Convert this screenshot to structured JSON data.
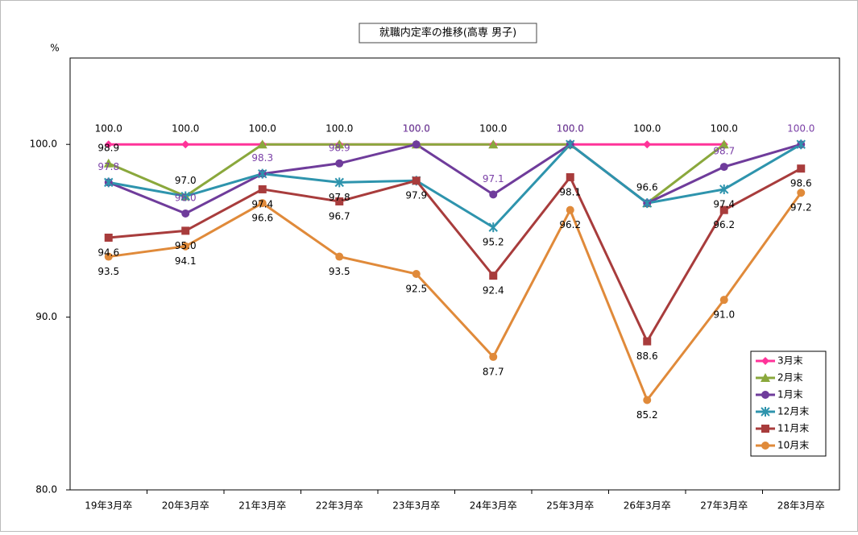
{
  "chart_data": {
    "type": "line",
    "title": "就職内定率の推移(高専 男子)",
    "y_label": "%",
    "categories": [
      "19年3月卒",
      "20年3月卒",
      "21年3月卒",
      "22年3月卒",
      "23年3月卒",
      "24年3月卒",
      "25年3月卒",
      "26年3月卒",
      "27年3月卒",
      "28年3月卒"
    ],
    "ylim": [
      80,
      105
    ],
    "yticks": [
      {
        "value": 80,
        "label": "80.0"
      },
      {
        "value": 90,
        "label": "90.0"
      },
      {
        "value": 100,
        "label": "100.0"
      }
    ],
    "legend": "bottom-right",
    "series": [
      {
        "name": "3月末",
        "color": "#ff3399",
        "marker": "diamond",
        "label_color": "#000000",
        "label_position": "above",
        "values": [
          100,
          100,
          100,
          100,
          100,
          100,
          100,
          100,
          100,
          null
        ],
        "value_labels": [
          "100.0",
          "100.0",
          "100.0",
          "100.0",
          "100.0",
          "100.0",
          "100.0",
          "100.0",
          "100.0",
          null
        ]
      },
      {
        "name": "2月末",
        "color": "#8aa83c",
        "marker": "triangle",
        "label_color": "#000000",
        "label_position": "above",
        "values": [
          98.9,
          97.0,
          100,
          100,
          100,
          100,
          100,
          96.6,
          100,
          null
        ],
        "value_labels": [
          "98.9",
          "97.0",
          null,
          null,
          null,
          null,
          null,
          "96.6",
          null,
          null
        ]
      },
      {
        "name": "1月末",
        "color": "#6f3c9b",
        "marker": "circle",
        "label_color": "#7a3fa6",
        "label_position": "above",
        "values": [
          97.8,
          96.0,
          98.3,
          98.9,
          100,
          97.1,
          100,
          96.6,
          98.7,
          100
        ],
        "value_labels": [
          "97.8",
          "96.0",
          "98.3",
          "98.9",
          "100.0",
          "97.1",
          "100.0",
          null,
          "98.7",
          "100.0"
        ]
      },
      {
        "name": "12月末",
        "color": "#2e94ad",
        "marker": "asterisk",
        "label_color": "#000000",
        "label_position": "below",
        "values": [
          97.8,
          97.0,
          98.3,
          97.8,
          97.9,
          95.2,
          100,
          96.6,
          97.4,
          100
        ],
        "value_labels": [
          null,
          null,
          null,
          "97.8",
          "97.9",
          "95.2",
          null,
          null,
          "97.4",
          null
        ]
      },
      {
        "name": "11月末",
        "color": "#a83c3c",
        "marker": "square",
        "label_color": "#000000",
        "label_position": "below",
        "values": [
          94.6,
          95.0,
          97.4,
          96.7,
          97.9,
          92.4,
          98.1,
          88.6,
          96.2,
          98.6
        ],
        "value_labels": [
          "94.6",
          "95.0",
          "97.4",
          "96.7",
          null,
          "92.4",
          "98.1",
          "88.6",
          "96.2",
          "98.6"
        ]
      },
      {
        "name": "10月末",
        "color": "#e08a3a",
        "marker": "circle",
        "label_color": "#000000",
        "label_position": "below",
        "values": [
          93.5,
          94.1,
          96.6,
          93.5,
          92.5,
          87.7,
          96.2,
          85.2,
          91.0,
          97.2
        ],
        "value_labels": [
          "93.5",
          "94.1",
          "96.6",
          "93.5",
          "92.5",
          "87.7",
          "96.2",
          "85.2",
          "91.0",
          "97.2"
        ]
      }
    ]
  }
}
